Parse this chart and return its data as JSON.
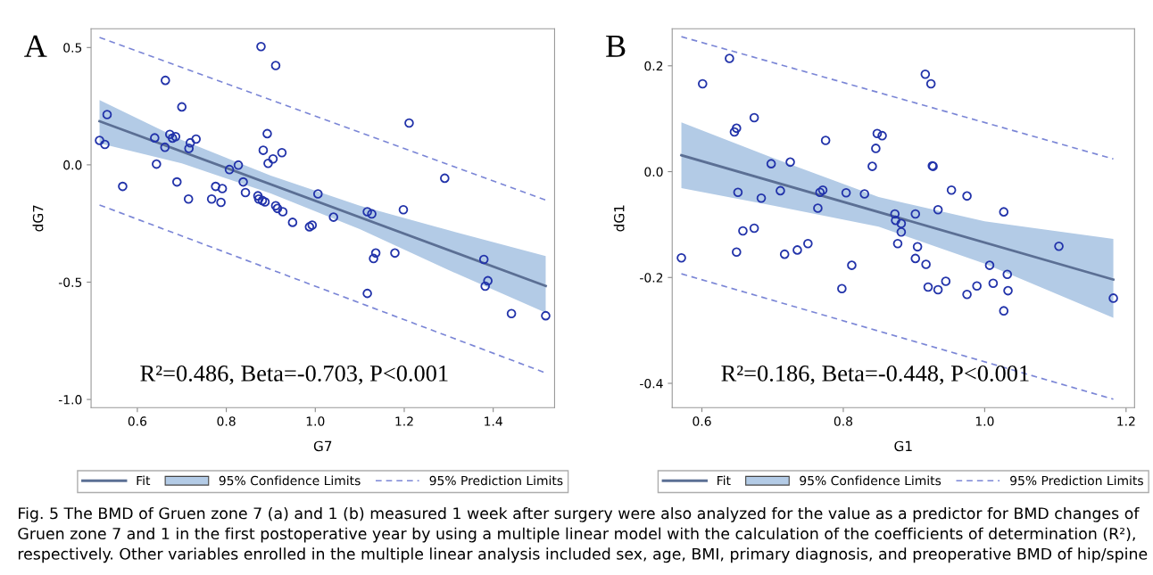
{
  "chart_data": [
    {
      "type": "scatter",
      "title": "A",
      "xlabel": "G7",
      "ylabel": "dG7",
      "xlim": [
        0.496,
        1.538
      ],
      "ylim": [
        -1.035,
        0.58
      ],
      "xticks": [
        {
          "value": 0.6,
          "label": "0.6"
        },
        {
          "value": 0.8,
          "label": "0.8"
        },
        {
          "value": 1.0,
          "label": "1.0"
        },
        {
          "value": 1.2,
          "label": "1.2"
        },
        {
          "value": 1.4,
          "label": "1.4"
        }
      ],
      "yticks": [
        {
          "value": 0.5,
          "label": "0.5"
        },
        {
          "value": 0.0,
          "label": "0.0"
        },
        {
          "value": -0.5,
          "label": "-0.5"
        },
        {
          "value": -1.0,
          "label": "-1.0"
        }
      ],
      "grid": false,
      "legend": "bottom",
      "annotations": [
        "R²=0.486, Beta=-0.703, P<0.001",
        "Fig. 5 The BMD of Gruen zone 7 (a) and 1 (b) measured 1 week after surgery were also analyzed for the value as a predictor for BMD changes of Gruen zone 7 and 1 in the first postoperative year by using a multiple linear model with the calculation of the coefficients of determination (R²), respectively. Other variables enrolled in the multiple linear analysis included sex, age, BMI, primary diagnosis, and preoperative BMD of hip/spine"
      ],
      "series": [
        {
          "type": "line",
          "name": "Fit",
          "color": "#5b6f94",
          "line_style": "solid",
          "x": [
            0.515,
            1.518
          ],
          "values": [
            0.186,
            -0.516
          ]
        },
        {
          "type": "line",
          "name": "95% Confidence Limits",
          "color": "#b3cbe6",
          "x": [
            0.515,
            0.7,
            0.9,
            1.1,
            1.3,
            1.518
          ],
          "values": [
            null,
            null,
            null,
            null,
            null,
            null
          ],
          "upper": [
            0.276,
            0.106,
            -0.046,
            -0.174,
            -0.279,
            -0.389
          ],
          "lower": [
            0.092,
            0.006,
            -0.122,
            -0.274,
            -0.449,
            -0.63
          ]
        },
        {
          "type": "line",
          "name": "95% Prediction Limits",
          "color": "#7b86d6",
          "line_style": "dashed",
          "x": [
            0.515,
            1.518
          ],
          "values": [
            0.543,
            -0.15
          ]
        },
        {
          "type": "line",
          "color": "#7b86d6",
          "line_style": "dashed",
          "x": [
            0.515,
            1.518
          ],
          "values": [
            -0.171,
            -0.887
          ]
        },
        {
          "color": "#2233aa",
          "marker": "circle",
          "x": [
            0.515,
            0.527,
            0.532,
            0.567,
            0.663,
            0.639,
            0.643,
            0.662,
            0.673,
            0.679,
            0.686,
            0.7,
            0.689,
            0.715,
            0.716,
            0.719,
            0.732,
            0.767,
            0.776,
            0.788,
            0.791,
            0.807,
            0.827,
            0.838,
            0.843,
            0.871,
            0.873,
            0.881,
            0.887,
            0.878,
            0.911,
            0.883,
            0.892,
            0.894,
            0.905,
            0.925,
            0.911,
            0.915,
            0.927,
            0.949,
            0.987,
            0.993,
            1.006,
            1.041,
            1.211,
            1.291,
            1.117,
            1.127,
            1.198,
            1.136,
            1.131,
            1.179,
            1.117,
            1.379,
            1.388,
            1.382,
            1.441,
            1.518
          ],
          "values": [
            0.104,
            0.087,
            0.214,
            -0.092,
            0.36,
            0.115,
            0.003,
            0.075,
            0.13,
            0.114,
            0.12,
            0.247,
            -0.073,
            -0.146,
            0.07,
            0.094,
            0.11,
            -0.146,
            -0.092,
            -0.16,
            -0.101,
            -0.02,
            -0.001,
            -0.073,
            -0.118,
            -0.132,
            -0.146,
            -0.152,
            -0.158,
            0.504,
            0.423,
            0.062,
            0.133,
            0.006,
            0.025,
            0.052,
            -0.174,
            -0.186,
            -0.2,
            -0.245,
            -0.264,
            -0.257,
            -0.124,
            -0.223,
            0.178,
            -0.057,
            -0.2,
            -0.209,
            -0.191,
            -0.376,
            -0.399,
            -0.376,
            -0.548,
            -0.403,
            -0.494,
            -0.517,
            -0.634,
            -0.643
          ]
        }
      ]
    },
    {
      "type": "scatter",
      "title": "B",
      "xlabel": "G1",
      "ylabel": "dG1",
      "xlim": [
        0.558,
        1.212
      ],
      "ylim": [
        -0.446,
        0.27
      ],
      "xticks": [
        {
          "value": 0.6,
          "label": "0.6"
        },
        {
          "value": 0.8,
          "label": "0.8"
        },
        {
          "value": 1.0,
          "label": "1.0"
        },
        {
          "value": 1.2,
          "label": "1.2"
        }
      ],
      "yticks": [
        {
          "value": 0.2,
          "label": "0.2"
        },
        {
          "value": 0.0,
          "label": "0.0"
        },
        {
          "value": -0.2,
          "label": "-0.2"
        },
        {
          "value": -0.4,
          "label": "-0.4"
        }
      ],
      "grid": false,
      "legend": "bottom",
      "annotations": [
        "R²=0.186, Beta=-0.448, P<0.001"
      ],
      "series": [
        {
          "type": "line",
          "name": "Fit",
          "color": "#5b6f94",
          "line_style": "solid",
          "x": [
            0.571,
            1.182
          ],
          "values": [
            0.031,
            -0.204
          ]
        },
        {
          "type": "line",
          "name": "95% Confidence Limits",
          "color": "#b3cbe6",
          "x": [
            0.571,
            0.7,
            0.85,
            1.0,
            1.182
          ],
          "values": [
            null,
            null,
            null,
            null,
            null
          ],
          "upper": [
            0.093,
            0.026,
            -0.048,
            -0.094,
            -0.127
          ],
          "lower": [
            -0.031,
            -0.064,
            -0.104,
            -0.174,
            -0.276
          ]
        },
        {
          "type": "line",
          "name": "95% Prediction Limits",
          "color": "#7b86d6",
          "line_style": "dashed",
          "x": [
            0.571,
            1.182
          ],
          "values": [
            0.255,
            0.024
          ]
        },
        {
          "type": "line",
          "color": "#7b86d6",
          "line_style": "dashed",
          "x": [
            0.571,
            1.182
          ],
          "values": [
            -0.193,
            -0.43
          ]
        },
        {
          "color": "#2233aa",
          "marker": "circle",
          "x": [
            0.571,
            0.601,
            0.639,
            0.646,
            0.649,
            0.649,
            0.651,
            0.658,
            0.674,
            0.674,
            0.684,
            0.698,
            0.711,
            0.717,
            0.725,
            0.735,
            0.75,
            0.764,
            0.767,
            0.771,
            0.775,
            0.798,
            0.804,
            0.812,
            0.83,
            0.841,
            0.846,
            0.848,
            0.855,
            0.916,
            0.924,
            0.926,
            0.927,
            0.953,
            0.975,
            0.934,
            0.902,
            0.873,
            0.874,
            0.882,
            0.882,
            0.877,
            0.905,
            0.902,
            0.917,
            0.92,
            0.934,
            0.945,
            0.975,
            0.989,
            1.007,
            1.012,
            1.027,
            1.032,
            1.033,
            1.027,
            1.105,
            1.182
          ],
          "values": [
            -0.163,
            0.166,
            0.214,
            0.075,
            0.082,
            -0.152,
            -0.039,
            -0.112,
            0.102,
            -0.107,
            -0.05,
            0.015,
            -0.036,
            -0.156,
            0.018,
            -0.148,
            -0.136,
            -0.069,
            -0.039,
            -0.035,
            0.059,
            -0.221,
            -0.04,
            -0.177,
            -0.042,
            0.01,
            0.044,
            0.072,
            0.068,
            0.184,
            0.166,
            0.011,
            0.01,
            -0.035,
            -0.046,
            -0.072,
            -0.08,
            -0.08,
            -0.092,
            -0.098,
            -0.114,
            -0.136,
            -0.142,
            -0.164,
            -0.175,
            -0.218,
            -0.223,
            -0.207,
            -0.232,
            -0.216,
            -0.177,
            -0.211,
            -0.076,
            -0.194,
            -0.225,
            -0.263,
            -0.141,
            -0.239
          ]
        }
      ]
    }
  ]
}
